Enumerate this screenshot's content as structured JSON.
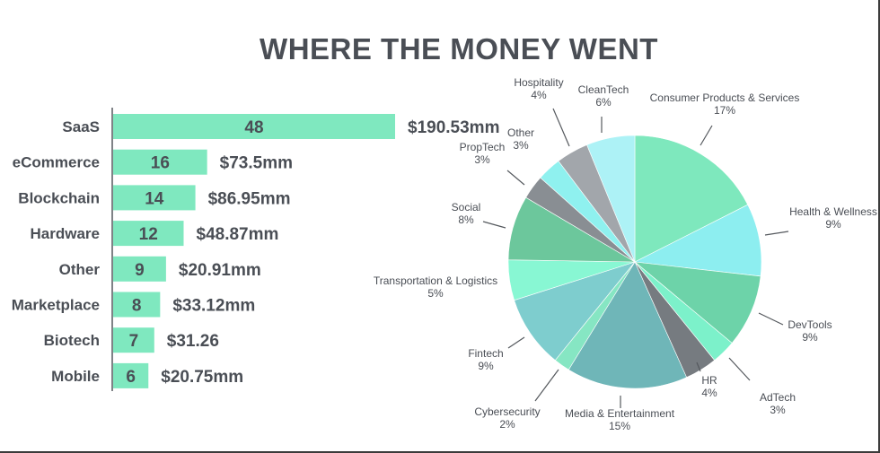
{
  "title": "WHERE THE MONEY WENT",
  "chart_data": [
    {
      "type": "bar",
      "orientation": "horizontal",
      "title": "",
      "categories": [
        "SaaS",
        "eCommerce",
        "Blockchain",
        "Hardware",
        "Other",
        "Marketplace",
        "Biotech",
        "Mobile"
      ],
      "values": [
        48,
        16,
        14,
        12,
        9,
        8,
        7,
        6
      ],
      "amounts": [
        "$190.53mm",
        "$73.5mm",
        "$86.95mm",
        "$48.87mm",
        "$20.91mm",
        "$33.12mm",
        "$31.26",
        "$20.75mm"
      ],
      "bar_color": "#7fe8bf",
      "grid": false,
      "xlim": [
        0,
        48
      ]
    },
    {
      "type": "pie",
      "title": "",
      "slices": [
        {
          "label": "Consumer Products & Services",
          "percent_label": "17%",
          "value": 17,
          "color": "#7ee8bd"
        },
        {
          "label": "Health & Wellness",
          "percent_label": "9%",
          "value": 9,
          "color": "#8deef0"
        },
        {
          "label": "DevTools",
          "percent_label": "9%",
          "value": 9,
          "color": "#6dd3a9"
        },
        {
          "label": "AdTech",
          "percent_label": "3%",
          "value": 3,
          "color": "#7cf1ca"
        },
        {
          "label": "HR",
          "percent_label": "4%",
          "value": 4,
          "color": "#767b80"
        },
        {
          "label": "Media & Entertainment",
          "percent_label": "15%",
          "value": 15,
          "color": "#6fb6b8"
        },
        {
          "label": "Cybersecurity",
          "percent_label": "2%",
          "value": 2,
          "color": "#86e6c3"
        },
        {
          "label": "Fintech",
          "percent_label": "9%",
          "value": 9,
          "color": "#7ecdce"
        },
        {
          "label": "Transportation & Logistics",
          "percent_label": "5%",
          "value": 5,
          "color": "#88f7d3"
        },
        {
          "label": "Social",
          "percent_label": "8%",
          "value": 8,
          "color": "#6cc79c"
        },
        {
          "label": "PropTech",
          "percent_label": "3%",
          "value": 3,
          "color": "#898e93"
        },
        {
          "label": "Other",
          "percent_label": "3%",
          "value": 3,
          "color": "#8ff1ef"
        },
        {
          "label": "Hospitality",
          "percent_label": "4%",
          "value": 4,
          "color": "#a2a6ab"
        },
        {
          "label": "CleanTech",
          "percent_label": "6%",
          "value": 6,
          "color": "#adf2f6"
        }
      ]
    }
  ]
}
